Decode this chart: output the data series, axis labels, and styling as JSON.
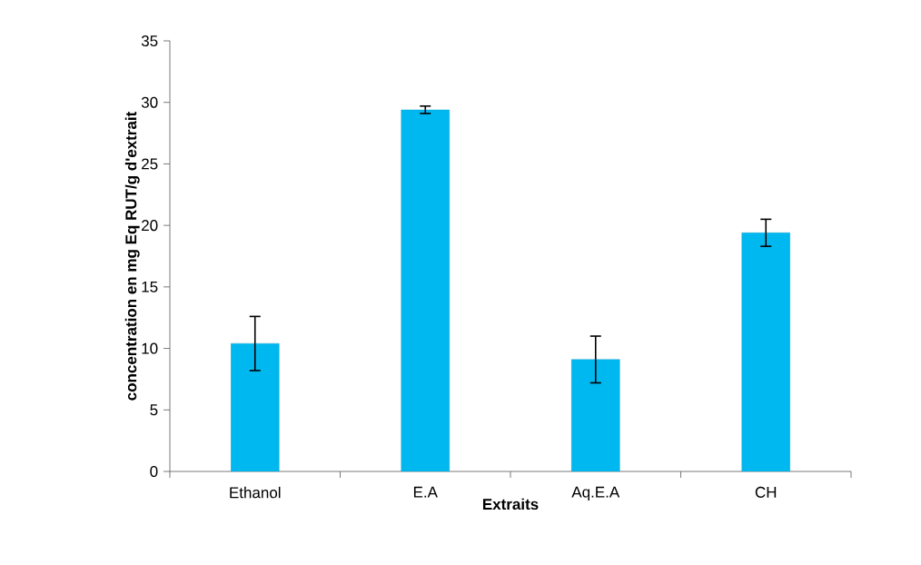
{
  "chart_data": {
    "type": "bar",
    "xlabel": "Extraits",
    "ylabel": "concentration en mg Eq RUT/g d'extrait",
    "categories": [
      "Ethanol",
      "E.A",
      "Aq.E.A",
      "CH"
    ],
    "values": [
      10.4,
      29.4,
      9.1,
      19.4
    ],
    "errors": [
      2.2,
      0.3,
      1.9,
      1.1
    ],
    "color": "#00b8f0",
    "ylim": [
      0,
      35
    ],
    "yticks": [
      0,
      5,
      10,
      15,
      20,
      25,
      30,
      35
    ],
    "grid": false
  }
}
